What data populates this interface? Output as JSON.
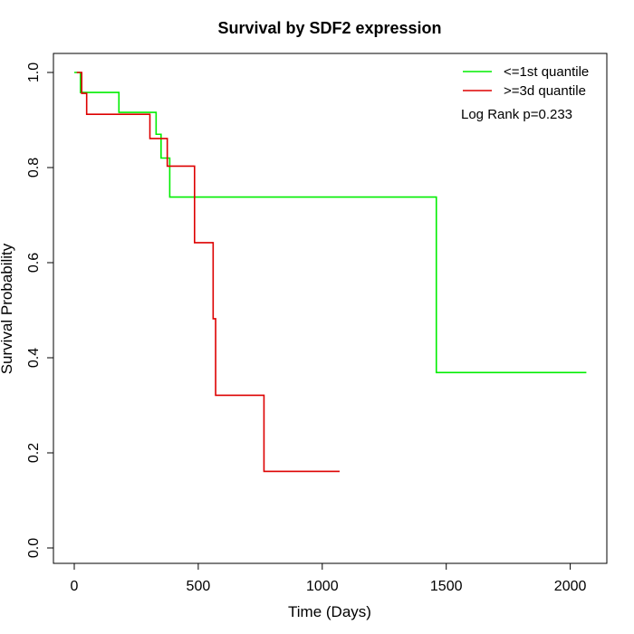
{
  "chart_data": {
    "type": "line",
    "step": true,
    "title": "Survival by SDF2 expression",
    "xlabel": "Time (Days)",
    "ylabel": "Survival Probability",
    "xlim": [
      0,
      2070
    ],
    "ylim": [
      0,
      1
    ],
    "xticks": [
      0,
      500,
      1000,
      1500,
      2000
    ],
    "yticks": [
      0.0,
      0.2,
      0.4,
      0.6,
      0.8,
      1.0
    ],
    "xtick_labels": [
      "0",
      "500",
      "1000",
      "1500",
      "2000"
    ],
    "ytick_labels": [
      "0.0",
      "0.2",
      "0.4",
      "0.6",
      "0.8",
      "1.0"
    ],
    "grid": false,
    "legend_position": "top-right",
    "annotation": "Log Rank p=0.233",
    "series": [
      {
        "name": "<=1st quantile",
        "color": "#00ee00",
        "x": [
          0,
          25,
          180,
          330,
          350,
          385,
          1460,
          2065
        ],
        "y": [
          1.0,
          0.958,
          0.916,
          0.87,
          0.82,
          0.738,
          0.369,
          0.369
        ]
      },
      {
        "name": ">=3d quantile",
        "color": "#dd0000",
        "x": [
          10,
          30,
          50,
          305,
          375,
          485,
          560,
          570,
          765,
          1070
        ],
        "y": [
          1.0,
          0.956,
          0.912,
          0.861,
          0.803,
          0.642,
          0.482,
          0.321,
          0.161,
          0.161
        ]
      }
    ]
  }
}
